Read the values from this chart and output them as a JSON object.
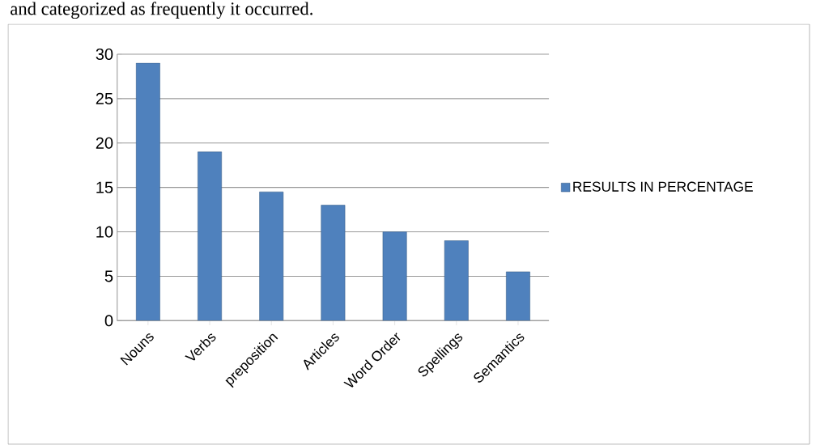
{
  "chart_data": {
    "type": "bar",
    "annotations": [
      "and categorized as frequently it occurred."
    ],
    "categories": [
      "Nouns",
      "Verbs",
      "preposition",
      "Articles",
      "Word Order",
      "Spellings",
      "Semantics"
    ],
    "series": [
      {
        "name": "RESULTS IN PERCENTAGE",
        "color": "#4f81bd",
        "values": [
          29,
          19,
          14.5,
          13,
          10,
          9,
          5.5
        ]
      }
    ],
    "ylim": [
      0,
      30
    ],
    "yticks": [
      0,
      5,
      10,
      15,
      20,
      25,
      30
    ],
    "grid": "y",
    "legend": "right"
  }
}
